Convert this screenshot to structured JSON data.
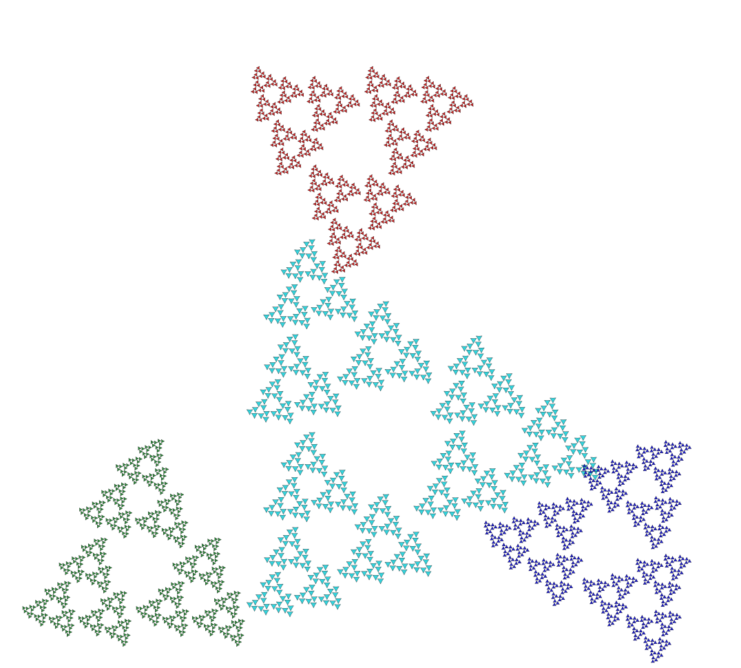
{
  "background": "#ffffff",
  "outline_color": "#000000",
  "depth": 6,
  "twist_degrees": 90,
  "regions": [
    {
      "name": "top-triangle",
      "color": "#cc2222",
      "rotation": 180
    },
    {
      "name": "center-spiral",
      "color": "#33d4dd",
      "rotation": 90
    },
    {
      "name": "lower-left-triangle",
      "color": "#2e8b3c",
      "rotation": 0
    },
    {
      "name": "lower-right-triangle",
      "color": "#1a1ad0",
      "rotation": 270
    }
  ]
}
